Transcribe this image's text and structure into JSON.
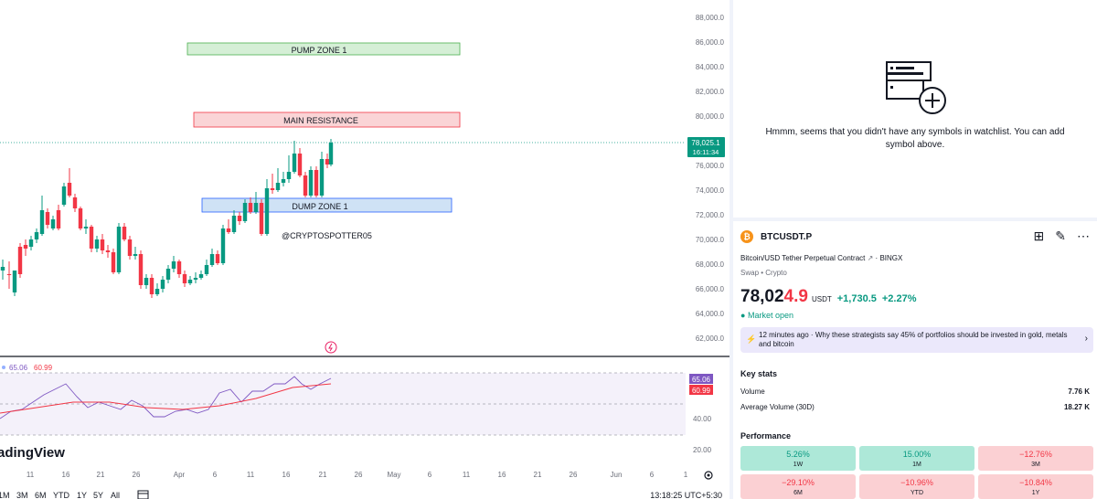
{
  "chart": {
    "price_axis": [
      "88,000.0",
      "86,000.0",
      "84,000.0",
      "82,000.0",
      "80,000.0",
      "78,000.0",
      "76,000.0",
      "74,000.0",
      "72,000.0",
      "70,000.0",
      "68,000.0",
      "66,000.0",
      "64,000.0",
      "62,000.0"
    ],
    "last_price_label": "78,025.1",
    "countdown_label": "16:11:34",
    "zones": {
      "pump": "PUMP ZONE 1",
      "resistance": "MAIN RESISTANCE",
      "dump": "DUMP ZONE 1"
    },
    "watermark_handle": "@CRYPTOSPOTTER05",
    "brand": "adingView",
    "colors": {
      "up": "#089981",
      "down": "#f23645",
      "rsi": "#7e57c2"
    }
  },
  "rsi": {
    "legend_val1": "65.06",
    "legend_val2": "60.99",
    "axis": [
      "40.00",
      "20.00"
    ],
    "badge1": "65.06",
    "badge2": "60.99"
  },
  "time_axis": [
    "11",
    "16",
    "21",
    "26",
    "Apr",
    "6",
    "11",
    "16",
    "21",
    "26",
    "May",
    "6",
    "11",
    "16",
    "21",
    "26",
    "Jun",
    "6",
    "1"
  ],
  "bottom_toolbar": {
    "ranges": [
      "1M",
      "3M",
      "6M",
      "YTD",
      "1Y",
      "5Y",
      "All"
    ],
    "time": "13:18:25 UTC+5:30"
  },
  "watchlist": {
    "empty_message": "Hmmm, seems that you didn't have any symbols in watchlist. You can add symbol above."
  },
  "symbol": {
    "logo": "₿",
    "ticker": "BTCUSDT.P",
    "full_name": "Bitcoin/USD Tether Perpetual Contract",
    "exchange": "BINGX",
    "category": "Swap • Crypto",
    "price_main": "78,02",
    "price_tail": "4.9",
    "currency": "USDT",
    "change": "+1,730.5",
    "change_pct": "+2.27%",
    "market_status": "Market open",
    "news": "12 minutes ago · Why these strategists say 45% of portfolios should be invested in gold, metals and bitcoin"
  },
  "key_stats": {
    "title": "Key stats",
    "rows": [
      {
        "label": "Volume",
        "value": "7.76 K"
      },
      {
        "label": "Average Volume (30D)",
        "value": "18.27 K"
      }
    ]
  },
  "performance": {
    "title": "Performance",
    "cells": [
      {
        "value": "5.26%",
        "label": "1W",
        "trend": "pos"
      },
      {
        "value": "15.00%",
        "label": "1M",
        "trend": "pos"
      },
      {
        "value": "−12.76%",
        "label": "3M",
        "trend": "neg"
      },
      {
        "value": "−29.10%",
        "label": "6M",
        "trend": "neg"
      },
      {
        "value": "−10.96%",
        "label": "YTD",
        "trend": "neg"
      },
      {
        "value": "−10.84%",
        "label": "1Y",
        "trend": "neg"
      }
    ]
  }
}
